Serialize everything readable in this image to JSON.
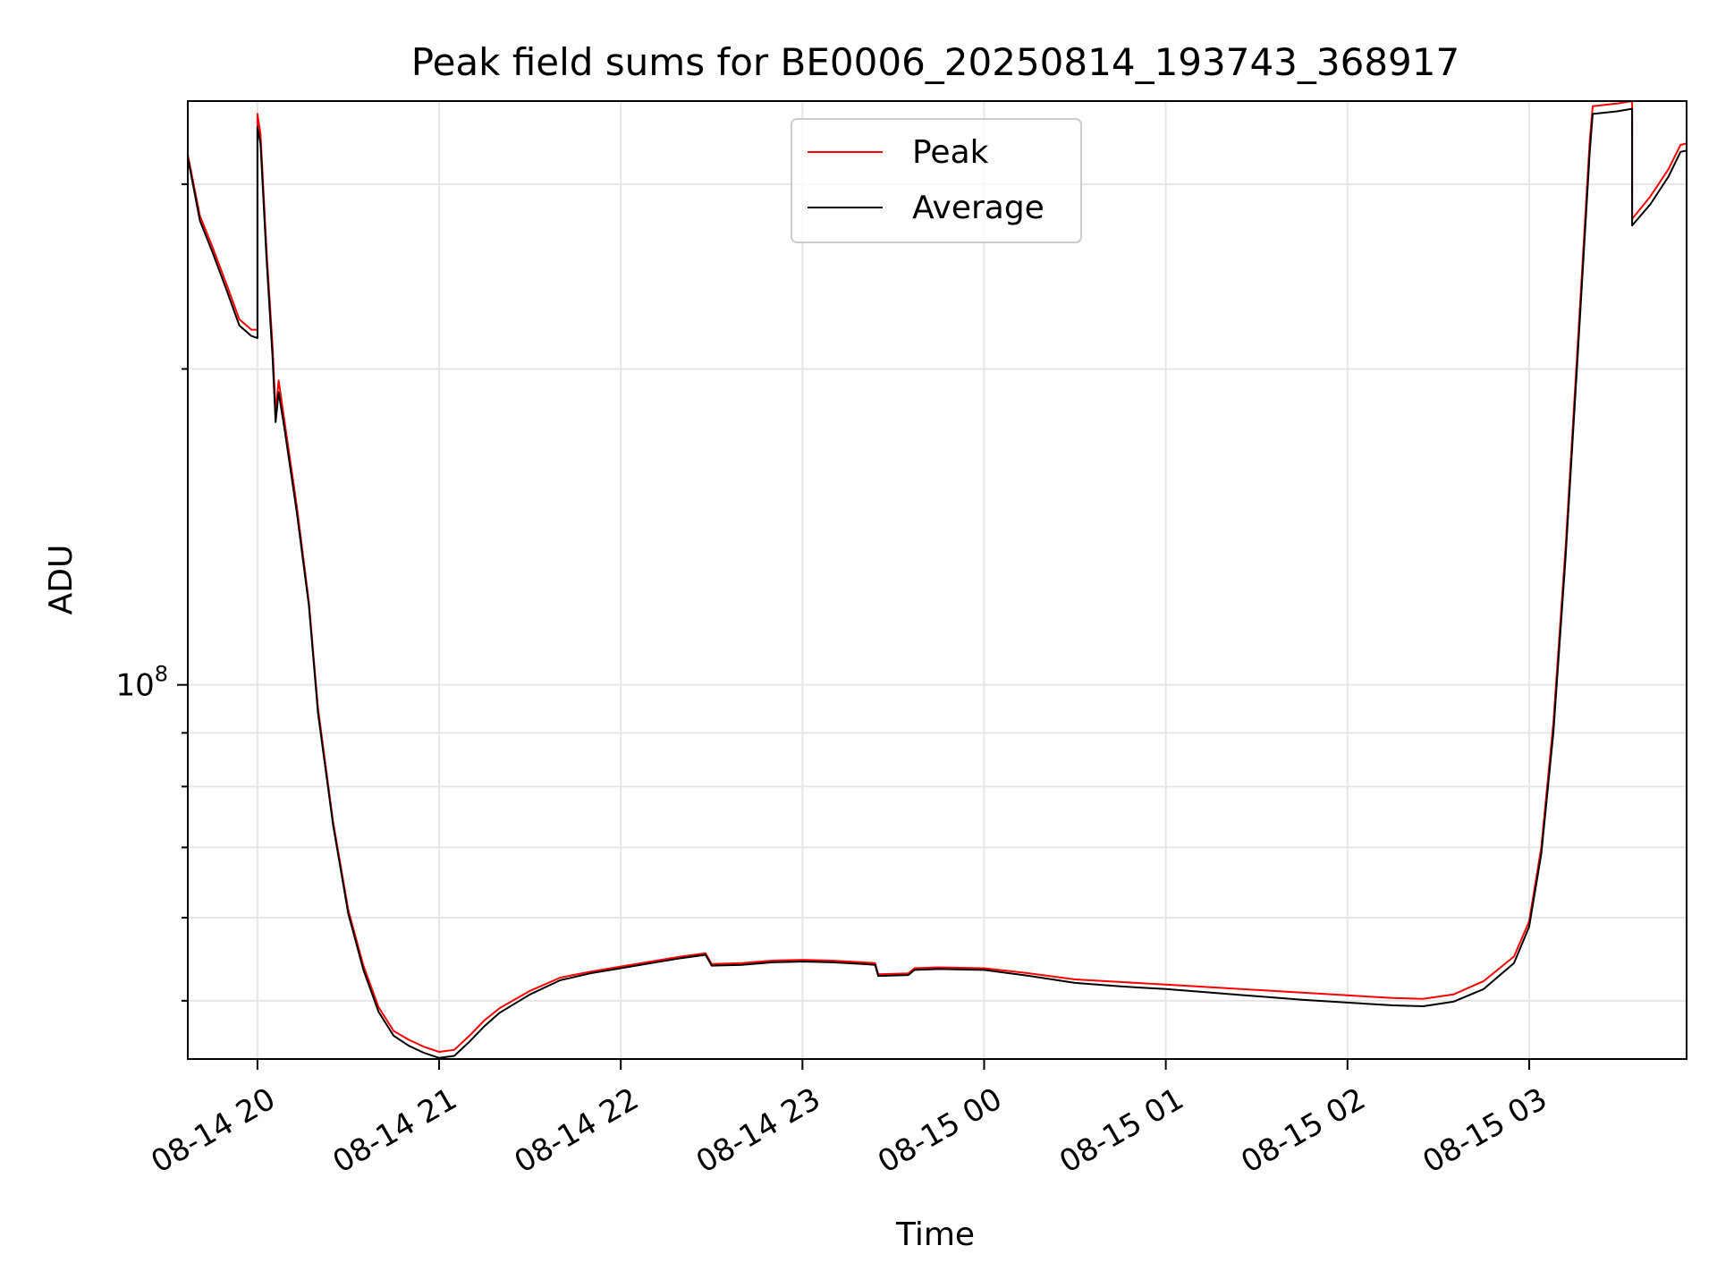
{
  "chart_data": {
    "type": "line",
    "title": "Peak field sums for BE0006_20250814_193743_368917",
    "xlabel": "Time",
    "ylabel": "ADU",
    "y_scale": "log",
    "y_tick_labels": [
      {
        "value": 100000000,
        "base": "10",
        "exp": "8"
      }
    ],
    "x_ticks": [
      "08-14 20",
      "08-14 21",
      "08-14 22",
      "08-14 23",
      "08-15 00",
      "08-15 01",
      "08-15 02",
      "08-15 03"
    ],
    "x_range": [
      "2025-08-14 19:37",
      "2025-08-15 03:52"
    ],
    "grid": true,
    "legend_position": "upper center",
    "colors": {
      "Peak": "#ff0000",
      "Average": "#000000"
    },
    "series": [
      {
        "name": "Peak",
        "points": [
          [
            "2025-08-14 19:37",
            320000000
          ],
          [
            "2025-08-14 19:41",
            280000000
          ],
          [
            "2025-08-14 19:45",
            262000000
          ],
          [
            "2025-08-14 19:50",
            240000000
          ],
          [
            "2025-08-14 19:54",
            223000000
          ],
          [
            "2025-08-14 19:58",
            218000000
          ],
          [
            "2025-08-14 20:00",
            218000000
          ],
          [
            "2025-08-14 20:00",
            350000000
          ],
          [
            "2025-08-14 20:01",
            335000000
          ],
          [
            "2025-08-14 20:03",
            260000000
          ],
          [
            "2025-08-14 20:05",
            210000000
          ],
          [
            "2025-08-14 20:06",
            182000000
          ],
          [
            "2025-08-14 20:07",
            195000000
          ],
          [
            "2025-08-14 20:09",
            178000000
          ],
          [
            "2025-08-14 20:13",
            148000000
          ],
          [
            "2025-08-14 20:17",
            120000000
          ],
          [
            "2025-08-14 20:20",
            95000000
          ],
          [
            "2025-08-14 20:25",
            74000000
          ],
          [
            "2025-08-14 20:30",
            61000000
          ],
          [
            "2025-08-14 20:35",
            54000000
          ],
          [
            "2025-08-14 20:40",
            49300000
          ],
          [
            "2025-08-14 20:45",
            46800000
          ],
          [
            "2025-08-14 20:50",
            45900000
          ],
          [
            "2025-08-14 20:55",
            45200000
          ],
          [
            "2025-08-14 21:00",
            44700000
          ],
          [
            "2025-08-14 21:05",
            44900000
          ],
          [
            "2025-08-14 21:10",
            46300000
          ],
          [
            "2025-08-14 21:15",
            47900000
          ],
          [
            "2025-08-14 21:20",
            49200000
          ],
          [
            "2025-08-14 21:30",
            51100000
          ],
          [
            "2025-08-14 21:40",
            52600000
          ],
          [
            "2025-08-14 21:50",
            53300000
          ],
          [
            "2025-08-14 22:00",
            53900000
          ],
          [
            "2025-08-14 22:10",
            54500000
          ],
          [
            "2025-08-14 22:20",
            55100000
          ],
          [
            "2025-08-14 22:28",
            55500000
          ],
          [
            "2025-08-14 22:30",
            54200000
          ],
          [
            "2025-08-14 22:40",
            54300000
          ],
          [
            "2025-08-14 22:50",
            54600000
          ],
          [
            "2025-08-14 23:00",
            54700000
          ],
          [
            "2025-08-14 23:10",
            54600000
          ],
          [
            "2025-08-14 23:20",
            54400000
          ],
          [
            "2025-08-14 23:24",
            54300000
          ],
          [
            "2025-08-14 23:25",
            53000000
          ],
          [
            "2025-08-14 23:35",
            53100000
          ],
          [
            "2025-08-14 23:37",
            53700000
          ],
          [
            "2025-08-14 23:45",
            53800000
          ],
          [
            "2025-08-15 00:00",
            53700000
          ],
          [
            "2025-08-15 00:15",
            53100000
          ],
          [
            "2025-08-15 00:30",
            52400000
          ],
          [
            "2025-08-15 00:45",
            52100000
          ],
          [
            "2025-08-15 01:00",
            51800000
          ],
          [
            "2025-08-15 01:15",
            51500000
          ],
          [
            "2025-08-15 01:30",
            51200000
          ],
          [
            "2025-08-15 01:45",
            50900000
          ],
          [
            "2025-08-15 02:00",
            50600000
          ],
          [
            "2025-08-15 02:15",
            50300000
          ],
          [
            "2025-08-15 02:25",
            50200000
          ],
          [
            "2025-08-15 02:35",
            50700000
          ],
          [
            "2025-08-15 02:45",
            52200000
          ],
          [
            "2025-08-15 02:55",
            55100000
          ],
          [
            "2025-08-15 03:00",
            59500000
          ],
          [
            "2025-08-15 03:04",
            70000000
          ],
          [
            "2025-08-15 03:08",
            92000000
          ],
          [
            "2025-08-15 03:12",
            135000000
          ],
          [
            "2025-08-15 03:16",
            210000000
          ],
          [
            "2025-08-15 03:20",
            330000000
          ],
          [
            "2025-08-15 03:21",
            356000000
          ],
          [
            "2025-08-15 03:29",
            358000000
          ],
          [
            "2025-08-15 03:34",
            360000000
          ],
          [
            "2025-08-15 03:34",
            278000000
          ],
          [
            "2025-08-15 03:40",
            292000000
          ],
          [
            "2025-08-15 03:46",
            310000000
          ],
          [
            "2025-08-15 03:50",
            327000000
          ],
          [
            "2025-08-15 03:52",
            328000000
          ]
        ]
      },
      {
        "name": "Average",
        "points": [
          [
            "2025-08-14 19:37",
            318000000
          ],
          [
            "2025-08-14 19:41",
            277000000
          ],
          [
            "2025-08-14 19:45",
            259000000
          ],
          [
            "2025-08-14 19:50",
            237000000
          ],
          [
            "2025-08-14 19:54",
            220000000
          ],
          [
            "2025-08-14 19:58",
            215000000
          ],
          [
            "2025-08-14 20:00",
            214000000
          ],
          [
            "2025-08-14 20:00",
            340000000
          ],
          [
            "2025-08-14 20:01",
            328000000
          ],
          [
            "2025-08-14 20:03",
            255000000
          ],
          [
            "2025-08-14 20:05",
            205000000
          ],
          [
            "2025-08-14 20:06",
            178000000
          ],
          [
            "2025-08-14 20:07",
            190000000
          ],
          [
            "2025-08-14 20:09",
            175000000
          ],
          [
            "2025-08-14 20:13",
            146000000
          ],
          [
            "2025-08-14 20:17",
            119000000
          ],
          [
            "2025-08-14 20:20",
            94000000
          ],
          [
            "2025-08-14 20:25",
            73500000
          ],
          [
            "2025-08-14 20:30",
            60500000
          ],
          [
            "2025-08-14 20:35",
            53500000
          ],
          [
            "2025-08-14 20:40",
            48800000
          ],
          [
            "2025-08-14 20:45",
            46300000
          ],
          [
            "2025-08-14 20:50",
            45300000
          ],
          [
            "2025-08-14 20:55",
            44600000
          ],
          [
            "2025-08-14 21:00",
            44100000
          ],
          [
            "2025-08-14 21:05",
            44300000
          ],
          [
            "2025-08-14 21:10",
            45700000
          ],
          [
            "2025-08-14 21:15",
            47300000
          ],
          [
            "2025-08-14 21:20",
            48700000
          ],
          [
            "2025-08-14 21:30",
            50700000
          ],
          [
            "2025-08-14 21:40",
            52300000
          ],
          [
            "2025-08-14 21:50",
            53100000
          ],
          [
            "2025-08-14 22:00",
            53700000
          ],
          [
            "2025-08-14 22:10",
            54300000
          ],
          [
            "2025-08-14 22:20",
            54900000
          ],
          [
            "2025-08-14 22:28",
            55300000
          ],
          [
            "2025-08-14 22:30",
            54000000
          ],
          [
            "2025-08-14 22:40",
            54100000
          ],
          [
            "2025-08-14 22:50",
            54400000
          ],
          [
            "2025-08-14 23:00",
            54500000
          ],
          [
            "2025-08-14 23:10",
            54400000
          ],
          [
            "2025-08-14 23:20",
            54200000
          ],
          [
            "2025-08-14 23:24",
            54100000
          ],
          [
            "2025-08-14 23:25",
            52800000
          ],
          [
            "2025-08-14 23:35",
            52900000
          ],
          [
            "2025-08-14 23:37",
            53500000
          ],
          [
            "2025-08-14 23:45",
            53600000
          ],
          [
            "2025-08-15 00:00",
            53500000
          ],
          [
            "2025-08-15 00:15",
            52800000
          ],
          [
            "2025-08-15 00:30",
            52000000
          ],
          [
            "2025-08-15 00:45",
            51600000
          ],
          [
            "2025-08-15 01:00",
            51300000
          ],
          [
            "2025-08-15 01:15",
            50900000
          ],
          [
            "2025-08-15 01:30",
            50500000
          ],
          [
            "2025-08-15 01:45",
            50100000
          ],
          [
            "2025-08-15 02:00",
            49800000
          ],
          [
            "2025-08-15 02:15",
            49500000
          ],
          [
            "2025-08-15 02:25",
            49400000
          ],
          [
            "2025-08-15 02:35",
            49900000
          ],
          [
            "2025-08-15 02:45",
            51300000
          ],
          [
            "2025-08-15 02:55",
            54300000
          ],
          [
            "2025-08-15 03:00",
            58800000
          ],
          [
            "2025-08-15 03:04",
            69000000
          ],
          [
            "2025-08-15 03:08",
            90000000
          ],
          [
            "2025-08-15 03:12",
            132000000
          ],
          [
            "2025-08-15 03:16",
            205000000
          ],
          [
            "2025-08-15 03:20",
            322000000
          ],
          [
            "2025-08-15 03:21",
            350000000
          ],
          [
            "2025-08-15 03:29",
            352000000
          ],
          [
            "2025-08-15 03:34",
            354000000
          ],
          [
            "2025-08-15 03:34",
            274000000
          ],
          [
            "2025-08-15 03:40",
            287000000
          ],
          [
            "2025-08-15 03:46",
            305000000
          ],
          [
            "2025-08-15 03:50",
            322000000
          ],
          [
            "2025-08-15 03:52",
            323000000
          ]
        ]
      }
    ]
  }
}
